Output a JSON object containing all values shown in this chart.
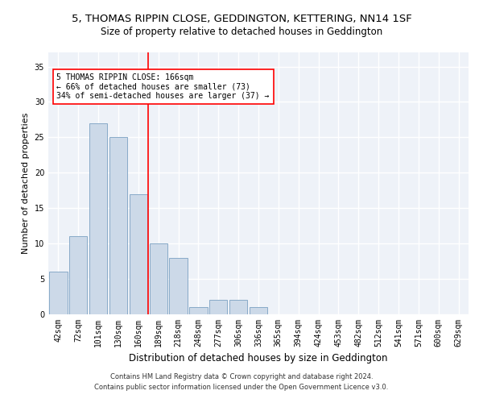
{
  "title1": "5, THOMAS RIPPIN CLOSE, GEDDINGTON, KETTERING, NN14 1SF",
  "title2": "Size of property relative to detached houses in Geddington",
  "xlabel": "Distribution of detached houses by size in Geddington",
  "ylabel": "Number of detached properties",
  "footnote1": "Contains HM Land Registry data © Crown copyright and database right 2024.",
  "footnote2": "Contains public sector information licensed under the Open Government Licence v3.0.",
  "bin_labels": [
    "42sqm",
    "72sqm",
    "101sqm",
    "130sqm",
    "160sqm",
    "189sqm",
    "218sqm",
    "248sqm",
    "277sqm",
    "306sqm",
    "336sqm",
    "365sqm",
    "394sqm",
    "424sqm",
    "453sqm",
    "482sqm",
    "512sqm",
    "541sqm",
    "571sqm",
    "600sqm",
    "629sqm"
  ],
  "bar_values": [
    6,
    11,
    27,
    25,
    17,
    10,
    8,
    1,
    2,
    2,
    1,
    0,
    0,
    0,
    0,
    0,
    0,
    0,
    0,
    0,
    0
  ],
  "bar_color": "#ccd9e8",
  "bar_edge_color": "#88aac8",
  "ref_line_x": 4.5,
  "ref_line_color": "red",
  "annotation_text": "5 THOMAS RIPPIN CLOSE: 166sqm\n← 66% of detached houses are smaller (73)\n34% of semi-detached houses are larger (37) →",
  "annotation_box_color": "white",
  "annotation_box_edge_color": "red",
  "ylim": [
    0,
    37
  ],
  "yticks": [
    0,
    5,
    10,
    15,
    20,
    25,
    30,
    35
  ],
  "bg_color": "#eef2f8",
  "grid_color": "white",
  "title1_fontsize": 9.5,
  "title2_fontsize": 8.5,
  "xlabel_fontsize": 8.5,
  "ylabel_fontsize": 8.0,
  "tick_fontsize": 7.0,
  "annotation_fontsize": 7.0,
  "footnote_fontsize": 6.0
}
